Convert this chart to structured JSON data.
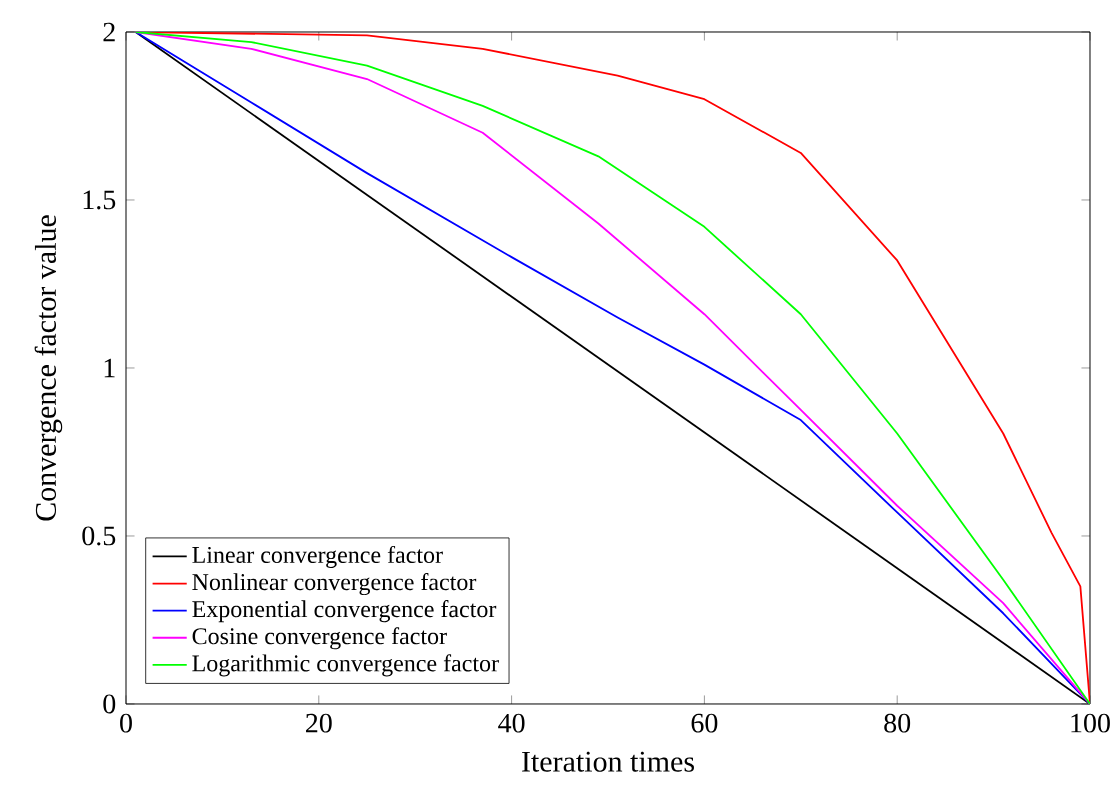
{
  "chart_data": {
    "type": "line",
    "xlabel": "Iteration times",
    "ylabel": "Convergence factor value",
    "xlim": [
      0,
      100
    ],
    "ylim": [
      0,
      2
    ],
    "xticks": [
      0,
      20,
      40,
      60,
      80,
      100
    ],
    "yticks": [
      0,
      0.5,
      1,
      1.5,
      2
    ],
    "legend": "bottom left",
    "grid": false,
    "marker": "none",
    "line_style": "solid",
    "series": [
      {
        "name": "Linear convergence factor",
        "color": "#000000",
        "x": [
          1,
          100
        ],
        "values": [
          2,
          0
        ]
      },
      {
        "name": "Nonlinear convergence factor",
        "color": "#ff0000",
        "x": [
          1,
          25,
          37,
          51,
          60,
          70,
          80,
          91,
          96,
          99,
          100
        ],
        "values": [
          2,
          1.99,
          1.95,
          1.87,
          1.8,
          1.64,
          1.32,
          0.805,
          0.51,
          0.35,
          0
        ]
      },
      {
        "name": "Exponential convergence factor",
        "color": "#0000ff",
        "x": [
          1,
          13,
          25,
          40,
          51,
          60,
          70,
          80,
          91,
          100
        ],
        "values": [
          2,
          1.79,
          1.58,
          1.33,
          1.15,
          1.01,
          0.845,
          0.57,
          0.27,
          0
        ]
      },
      {
        "name": "Cosine convergence factor",
        "color": "#ff00ff",
        "x": [
          1,
          13,
          25,
          37,
          49,
          60,
          70,
          80,
          91,
          100
        ],
        "values": [
          2,
          1.95,
          1.86,
          1.7,
          1.43,
          1.16,
          0.875,
          0.59,
          0.3,
          0
        ]
      },
      {
        "name": "Logarithmic convergence factor",
        "color": "#00ff00",
        "x": [
          1,
          13,
          25,
          37,
          49,
          60,
          70,
          80,
          91,
          100
        ],
        "values": [
          2,
          1.97,
          1.9,
          1.78,
          1.63,
          1.42,
          1.16,
          0.805,
          0.37,
          0
        ]
      }
    ]
  }
}
